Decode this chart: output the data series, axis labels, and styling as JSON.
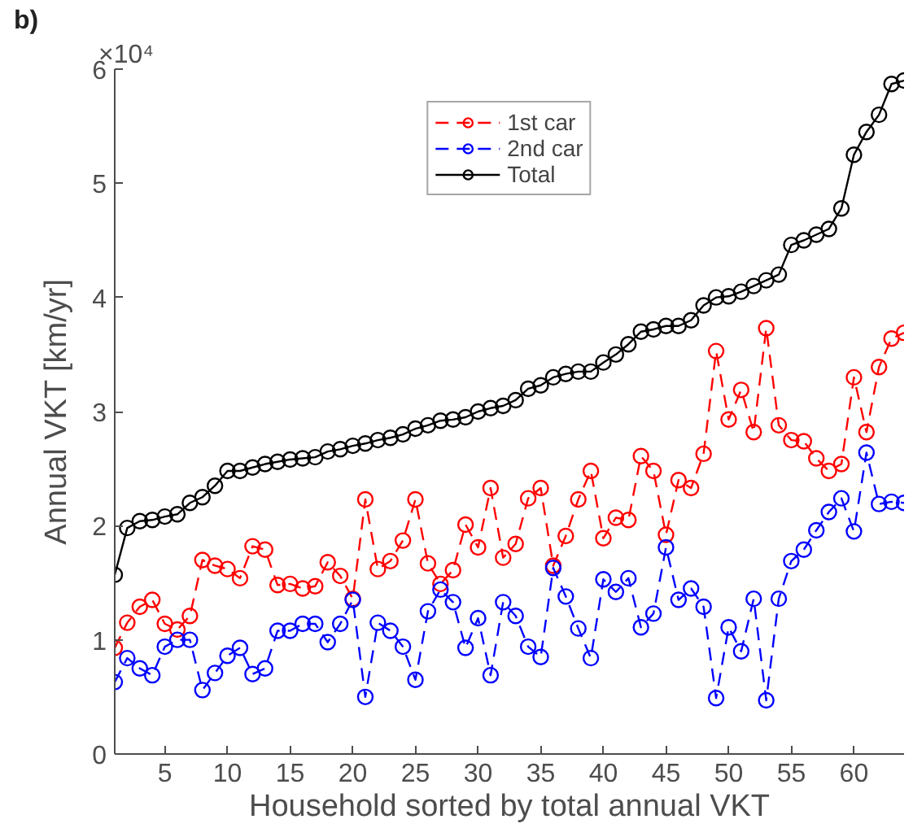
{
  "chart_data": {
    "type": "line",
    "xlabel": "Household sorted by total annual VKT",
    "ylabel": "Annual VKT [km/yr]",
    "annotations": [
      "b)",
      "×10⁴"
    ],
    "x": [
      1,
      2,
      3,
      4,
      5,
      6,
      7,
      8,
      9,
      10,
      11,
      12,
      13,
      14,
      15,
      16,
      17,
      18,
      19,
      20,
      21,
      22,
      23,
      24,
      25,
      26,
      27,
      28,
      29,
      30,
      31,
      32,
      33,
      34,
      35,
      36,
      37,
      38,
      39,
      40,
      41,
      42,
      43,
      44,
      45,
      46,
      47,
      48,
      49,
      50,
      51,
      52,
      53,
      54,
      55,
      56,
      57,
      58,
      59,
      60,
      61,
      62,
      63,
      64
    ],
    "xlim": [
      1,
      64
    ],
    "xticks": [
      5,
      10,
      15,
      20,
      25,
      30,
      35,
      40,
      45,
      50,
      55,
      60
    ],
    "ylim": [
      0,
      6
    ],
    "yticks": [
      0,
      1,
      2,
      3,
      4,
      5,
      6
    ],
    "grid": false,
    "legend": "top",
    "marker": "circle",
    "series": [
      {
        "name": "1st car",
        "color": "#ff0000",
        "line_style": "dashed",
        "values": [
          0.93,
          1.15,
          1.29,
          1.35,
          1.14,
          1.09,
          1.21,
          1.7,
          1.65,
          1.62,
          1.54,
          1.82,
          1.79,
          1.48,
          1.49,
          1.45,
          1.47,
          1.68,
          1.56,
          1.36,
          2.23,
          1.62,
          1.69,
          1.87,
          2.23,
          1.67,
          1.49,
          1.61,
          2.01,
          1.81,
          2.33,
          1.72,
          1.84,
          2.24,
          2.33,
          1.65,
          1.91,
          2.23,
          2.48,
          1.89,
          2.07,
          2.05,
          2.61,
          2.48,
          1.92,
          2.4,
          2.33,
          2.63,
          3.53,
          2.93,
          3.19,
          2.82,
          3.73,
          2.88,
          2.75,
          2.74,
          2.59,
          2.48,
          2.54,
          3.3,
          2.82,
          3.39,
          3.64,
          3.69
        ]
      },
      {
        "name": "2nd car",
        "color": "#0000ff",
        "line_style": "dashed",
        "values": [
          0.63,
          0.84,
          0.75,
          0.69,
          0.94,
          1.0,
          1.0,
          0.56,
          0.71,
          0.86,
          0.93,
          0.7,
          0.75,
          1.08,
          1.08,
          1.14,
          1.14,
          0.98,
          1.14,
          1.35,
          0.5,
          1.15,
          1.08,
          0.94,
          0.65,
          1.25,
          1.44,
          1.33,
          0.93,
          1.19,
          0.69,
          1.33,
          1.21,
          0.94,
          0.85,
          1.63,
          1.38,
          1.1,
          0.84,
          1.53,
          1.42,
          1.54,
          1.11,
          1.23,
          1.81,
          1.35,
          1.45,
          1.29,
          0.49,
          1.11,
          0.9,
          1.36,
          0.47,
          1.36,
          1.69,
          1.79,
          1.96,
          2.12,
          2.24,
          1.95,
          2.64,
          2.19,
          2.21,
          2.2
        ]
      },
      {
        "name": "Total",
        "color": "#000000",
        "line_style": "solid",
        "values": [
          1.57,
          1.98,
          2.04,
          2.05,
          2.08,
          2.1,
          2.2,
          2.25,
          2.35,
          2.48,
          2.48,
          2.51,
          2.54,
          2.56,
          2.58,
          2.59,
          2.6,
          2.65,
          2.67,
          2.7,
          2.72,
          2.75,
          2.77,
          2.8,
          2.85,
          2.88,
          2.92,
          2.93,
          2.95,
          3.0,
          3.03,
          3.05,
          3.1,
          3.2,
          3.23,
          3.3,
          3.33,
          3.35,
          3.35,
          3.43,
          3.5,
          3.59,
          3.7,
          3.72,
          3.75,
          3.75,
          3.8,
          3.93,
          4.0,
          4.01,
          4.05,
          4.1,
          4.15,
          4.2,
          4.46,
          4.5,
          4.55,
          4.6,
          4.78,
          5.25,
          5.45,
          5.6,
          5.87,
          5.9
        ]
      }
    ]
  }
}
